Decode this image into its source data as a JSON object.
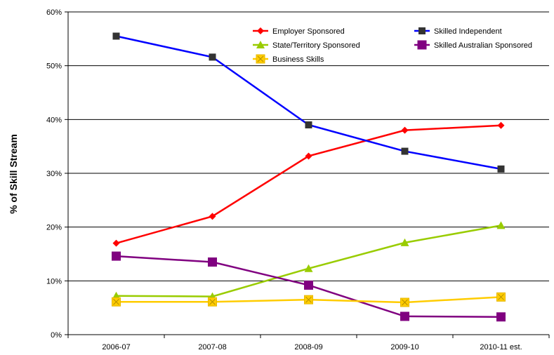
{
  "chart_data": {
    "type": "line",
    "ylabel": "% of Skill Stream",
    "xlabel": "",
    "categories": [
      "2006-07",
      "2007-08",
      "2008-09",
      "2009-10",
      "2010-11 est."
    ],
    "ylim": [
      0,
      60
    ],
    "yticks": [
      0,
      10,
      20,
      30,
      40,
      50,
      60
    ],
    "ytick_labels": [
      "0%",
      "10%",
      "20%",
      "30%",
      "40%",
      "50%",
      "60%"
    ],
    "grid": "horizontal",
    "legend_position": "top-right",
    "series": [
      {
        "name": "Employer Sponsored",
        "color": "#ff0000",
        "marker": "diamond",
        "values": [
          17.0,
          22.0,
          33.2,
          38.0,
          38.9
        ]
      },
      {
        "name": "Skilled Independent",
        "color": "#0000ff",
        "marker": "square",
        "values": [
          55.5,
          51.6,
          39.0,
          34.1,
          30.8
        ]
      },
      {
        "name": "State/Territory Sponsored",
        "color": "#99cc00",
        "marker": "triangle",
        "values": [
          7.2,
          7.1,
          12.3,
          17.1,
          20.3
        ]
      },
      {
        "name": "Skilled Australian Sponsored",
        "color": "#800080",
        "marker": "square-large",
        "values": [
          14.6,
          13.5,
          9.2,
          3.4,
          3.3
        ]
      },
      {
        "name": "Business Skills",
        "color": "#ffcc00",
        "marker": "x-square",
        "values": [
          6.1,
          6.1,
          6.5,
          6.0,
          7.0
        ]
      }
    ]
  }
}
